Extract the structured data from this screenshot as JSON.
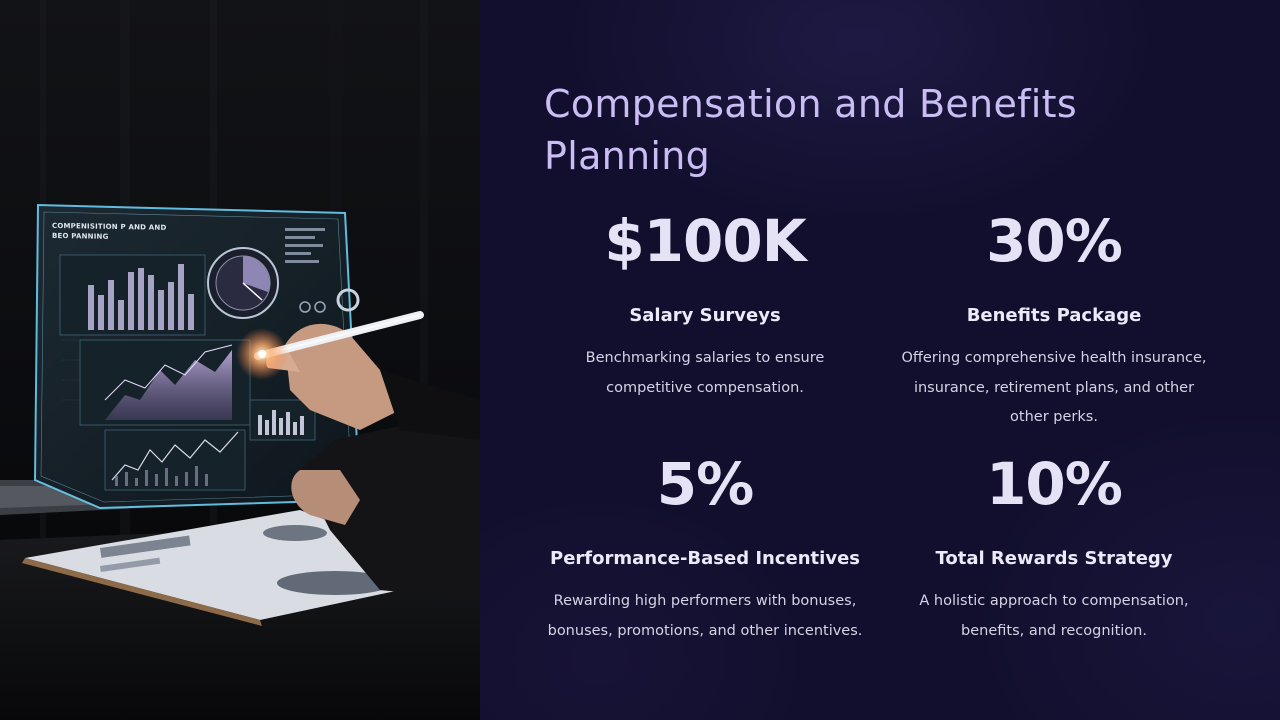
{
  "slide": {
    "title": "Compensation and Benefits Planning",
    "photo_screen_caption": "COMPENISITION P AND AND BEO PANNING",
    "stats": [
      {
        "value": "$100K",
        "label": "Salary Surveys",
        "description": "Benchmarking salaries to ensure competitive compensation."
      },
      {
        "value": "30%",
        "label": "Benefits Package",
        "description": "Offering comprehensive health insurance, insurance, retirement plans, and other other perks."
      },
      {
        "value": "5%",
        "label": "Performance-Based Incentives",
        "description": "Rewarding high performers with bonuses, bonuses, promotions, and other incentives."
      },
      {
        "value": "10%",
        "label": "Total Rewards Strategy",
        "description": "A holistic approach to compensation, benefits, and recognition."
      }
    ]
  },
  "colors": {
    "title": "#c9bdf4",
    "background": "#120f2e",
    "stat_value": "#e6e2f6",
    "screen_glow": "#6fd8ff"
  }
}
